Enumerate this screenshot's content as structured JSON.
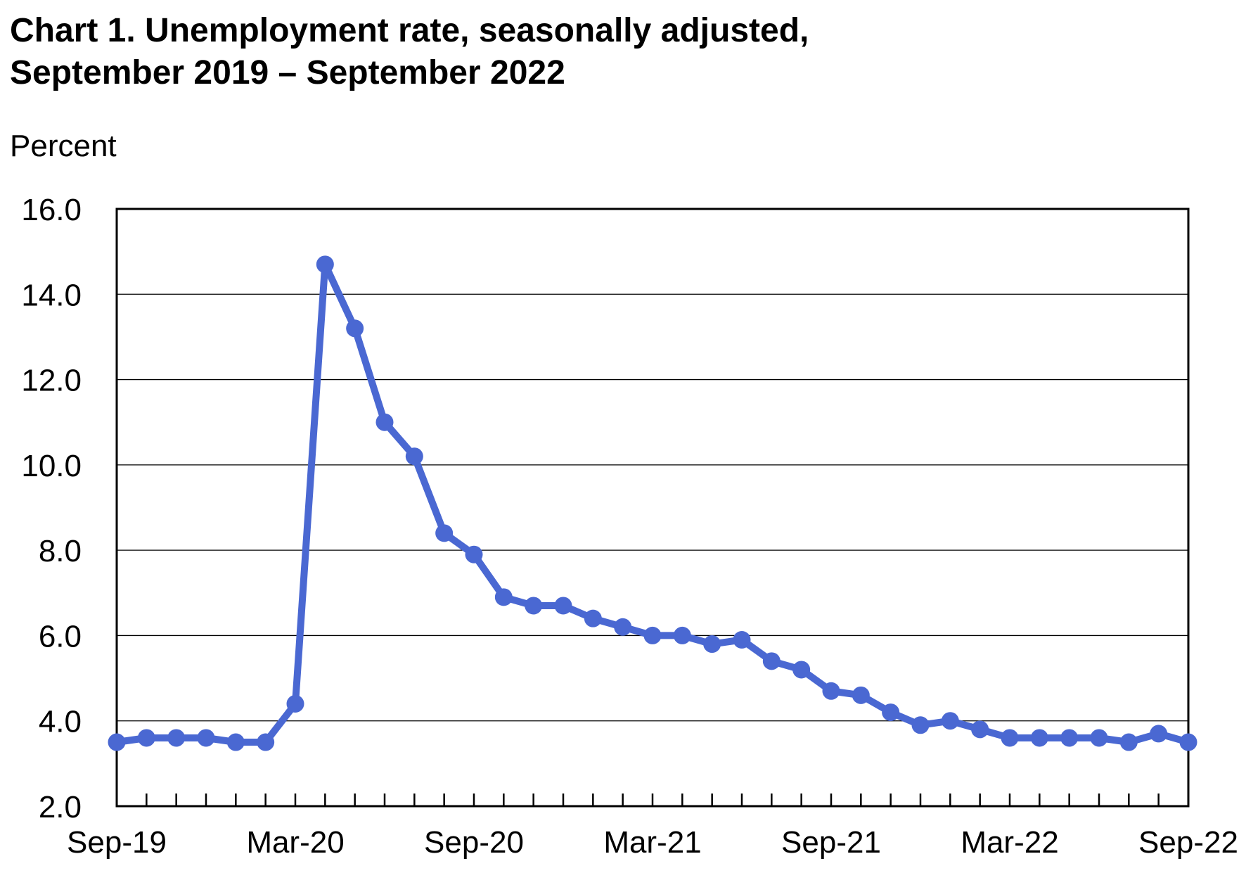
{
  "chart_data": {
    "type": "line",
    "title_line1": "Chart 1. Unemployment rate, seasonally adjusted,",
    "title_line2": "September 2019 – September 2022",
    "ylabel": "Percent",
    "xlabel": "",
    "ylim": [
      2.0,
      16.0
    ],
    "yticks": [
      "2.0",
      "4.0",
      "6.0",
      "8.0",
      "10.0",
      "12.0",
      "14.0",
      "16.0"
    ],
    "xtick_labels": [
      "Sep-19",
      "Mar-20",
      "Sep-20",
      "Mar-21",
      "Sep-21",
      "Mar-22",
      "Sep-22"
    ],
    "grid": "horizontal",
    "legend": "none",
    "line_color": "#4a68d2",
    "categories": [
      "Sep-19",
      "Oct-19",
      "Nov-19",
      "Dec-19",
      "Jan-20",
      "Feb-20",
      "Mar-20",
      "Apr-20",
      "May-20",
      "Jun-20",
      "Jul-20",
      "Aug-20",
      "Sep-20",
      "Oct-20",
      "Nov-20",
      "Dec-20",
      "Jan-21",
      "Feb-21",
      "Mar-21",
      "Apr-21",
      "May-21",
      "Jun-21",
      "Jul-21",
      "Aug-21",
      "Sep-21",
      "Oct-21",
      "Nov-21",
      "Dec-21",
      "Jan-22",
      "Feb-22",
      "Mar-22",
      "Apr-22",
      "May-22",
      "Jun-22",
      "Jul-22",
      "Aug-22",
      "Sep-22"
    ],
    "series": [
      {
        "values": [
          3.5,
          3.6,
          3.6,
          3.6,
          3.5,
          3.5,
          4.4,
          14.7,
          13.2,
          11.0,
          10.2,
          8.4,
          7.9,
          6.9,
          6.7,
          6.7,
          6.4,
          6.2,
          6.0,
          6.0,
          5.8,
          5.9,
          5.4,
          5.2,
          4.7,
          4.6,
          4.2,
          3.9,
          4.0,
          3.8,
          3.6,
          3.6,
          3.6,
          3.6,
          3.5,
          3.7,
          3.5
        ]
      }
    ]
  }
}
